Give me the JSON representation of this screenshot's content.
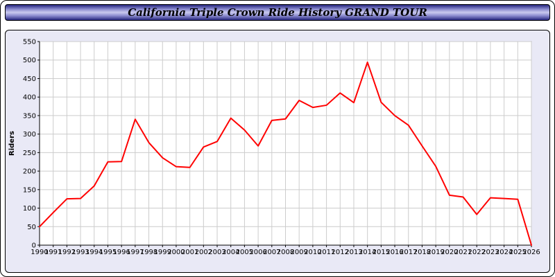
{
  "header": {
    "title": "California Triple Crown Ride History GRAND TOUR"
  },
  "chart_data": {
    "type": "line",
    "title": "California Triple Crown Ride History GRAND TOUR",
    "xlabel": "",
    "ylabel": "Riders",
    "ylim": [
      0,
      550
    ],
    "ytick_step": 50,
    "grid": true,
    "legend_position": "none",
    "x": [
      "1990",
      "1991",
      "1992",
      "1993",
      "1994",
      "1995",
      "1996",
      "1997",
      "1998",
      "1999",
      "2000",
      "2001",
      "2002",
      "2003",
      "2004",
      "2005",
      "2006",
      "2007",
      "2008",
      "2009",
      "2010",
      "2011",
      "2012",
      "2013",
      "2014",
      "2015",
      "2016",
      "2017",
      "2018",
      "2019",
      "2020",
      "2021",
      "2022",
      "2023",
      "2024",
      "2025",
      "2026"
    ],
    "series": [
      {
        "name": "Riders",
        "color": "#ff0000",
        "values": [
          50,
          88,
          125,
          126,
          160,
          225,
          226,
          340,
          277,
          236,
          212,
          210,
          265,
          280,
          343,
          311,
          268,
          337,
          341,
          391,
          372,
          378,
          411,
          385,
          494,
          386,
          350,
          324,
          268,
          213,
          135,
          130,
          83,
          128,
          126,
          124,
          0
        ]
      }
    ]
  },
  "colors": {
    "line": "#ff0000",
    "grid": "#cccccc",
    "plot_background": "#ffffff",
    "panel_background": "#e9e9f6",
    "axis": "#000000",
    "tick_text": "#000000"
  }
}
